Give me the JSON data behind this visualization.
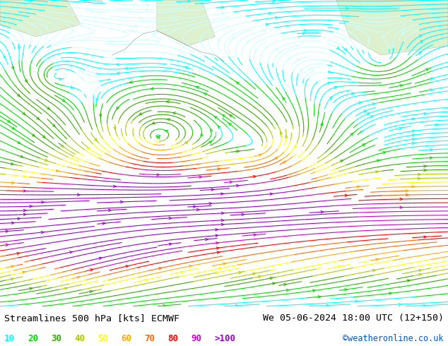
{
  "title_left": "Streamlines 500 hPa [kts] ECMWF",
  "title_right": "We 05-06-2024 18:00 UTC (12+150)",
  "credit": "©weatheronline.co.uk",
  "legend_values": [
    "10",
    "20",
    "30",
    "40",
    "50",
    "60",
    "70",
    "80",
    "90",
    ">100"
  ],
  "legend_colors": [
    "#00ffff",
    "#00dd00",
    "#33aa00",
    "#aacc00",
    "#ffff00",
    "#ffaa00",
    "#ff6600",
    "#ff0000",
    "#cc00cc",
    "#9900cc"
  ],
  "bg_color": "#d8d8d8",
  "fig_bg": "#ffffff",
  "title_color": "#000000",
  "title_fontsize": 9.5,
  "credit_color": "#0055cc",
  "credit_fontsize": 8.5,
  "figsize": [
    6.34,
    4.9
  ],
  "dpi": 100
}
